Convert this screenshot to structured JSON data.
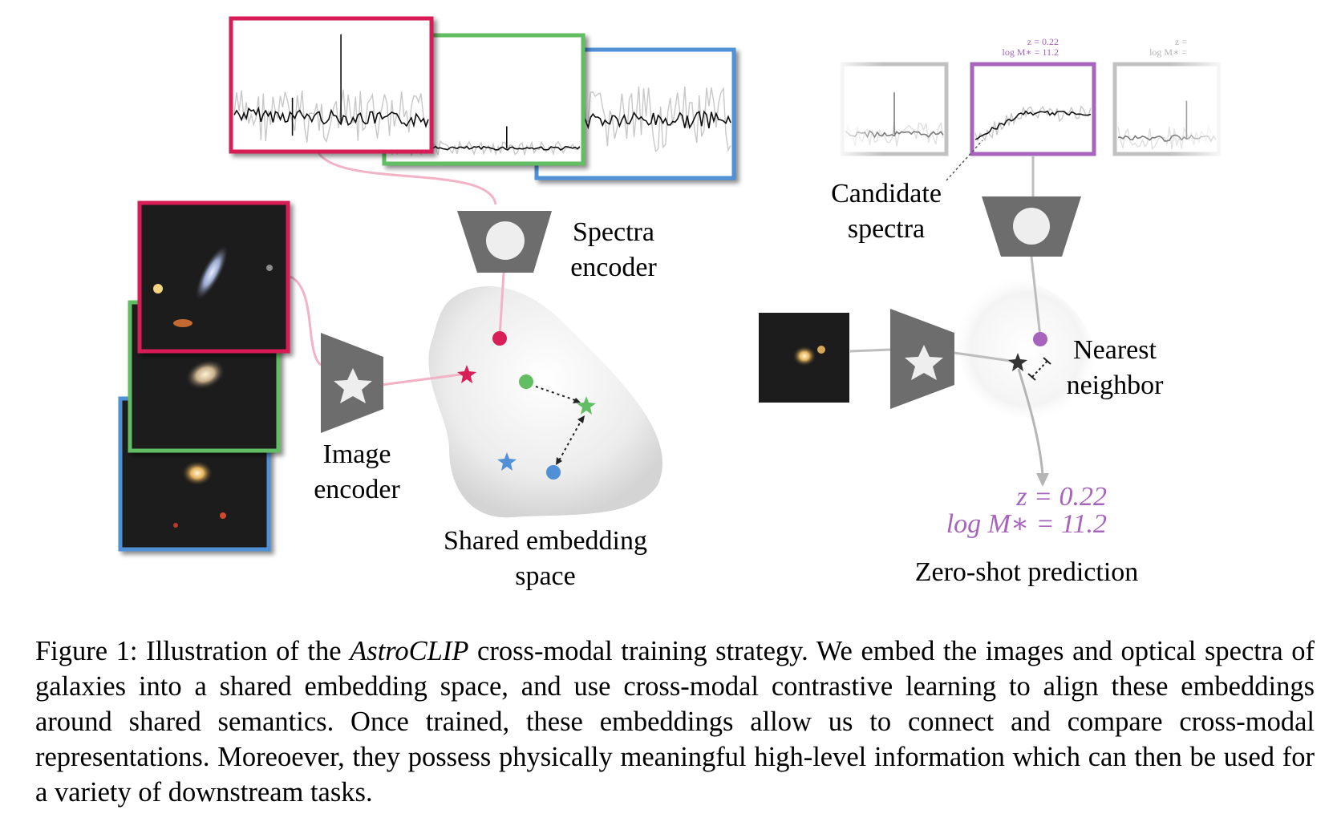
{
  "labels": {
    "spectra_encoder_line1": "Spectra",
    "spectra_encoder_line2": "encoder",
    "image_encoder_line1": "Image",
    "image_encoder_line2": "encoder",
    "shared_space_line1": "Shared embedding",
    "shared_space_line2": "space",
    "candidate_spectra_line1": "Candidate",
    "candidate_spectra_line2": "spectra",
    "nearest_neighbor_line1": "Nearest",
    "nearest_neighbor_line2": "neighbor",
    "zero_shot": "Zero-shot prediction",
    "prediction_z": "z = 0.22",
    "prediction_logm": "log M∗ = 11.2",
    "mini_candidate_z": "z = 0.22",
    "mini_candidate_logm": "log M∗ = 11.2",
    "mini_faded_z": "z =",
    "mini_faded_logm": "log M∗ ="
  },
  "caption": {
    "prefix": "Figure 1: Illustration of the ",
    "emphasis": "AstroCLIP",
    "rest": " cross-modal training strategy.  We embed the images and optical spectra of galaxies into a shared embedding space, and use cross-modal contrastive learning to align these embeddings around shared semantics.  Once trained, these embeddings allow us to connect and compare cross-modal representations. Moreoever, they possess physically meaningful high-level information which can then be used for a variety of downstream tasks."
  },
  "colors": {
    "red": "#d81f57",
    "green": "#62be62",
    "blue": "#4f90d6",
    "purple": "#a764bd",
    "encoder_gray": "#6d6d6d"
  },
  "icons": [
    "circle-icon",
    "star-icon"
  ]
}
